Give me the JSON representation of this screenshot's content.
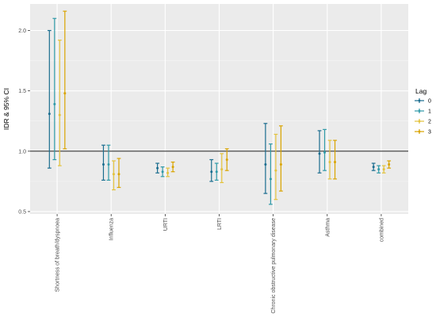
{
  "chart_data": {
    "type": "errorbar",
    "title": "",
    "ylabel": "IDR & 95% CI",
    "xlabel": "",
    "ylim": [
      0.48,
      2.22
    ],
    "yticks": [
      0.5,
      1.0,
      1.5,
      2.0
    ],
    "ytick_labels": [
      "0.5",
      "1.0",
      "1.5",
      "2.0"
    ],
    "reference_line": 1.0,
    "grid": true,
    "legend": {
      "title": "Lag",
      "position": "right"
    },
    "categories": [
      "Shortness of breath/dyspnoea",
      "Influenza",
      "URTI",
      "LRTI",
      "Chronic obstructive pulmonary disease",
      "Asthma",
      "combined"
    ],
    "series": [
      {
        "name": "0",
        "color": "#1b6d8f",
        "estimate": [
          1.31,
          0.89,
          0.86,
          0.83,
          0.89,
          0.98,
          0.87
        ],
        "lower": [
          0.86,
          0.76,
          0.82,
          0.75,
          0.65,
          0.82,
          0.84
        ],
        "upper": [
          2.0,
          1.05,
          0.9,
          0.93,
          1.23,
          1.17,
          0.9
        ]
      },
      {
        "name": "1",
        "color": "#2f9aa8",
        "estimate": [
          1.39,
          0.89,
          0.83,
          0.83,
          0.77,
          0.99,
          0.85
        ],
        "lower": [
          0.93,
          0.76,
          0.79,
          0.76,
          0.56,
          0.84,
          0.82
        ],
        "upper": [
          2.1,
          1.05,
          0.87,
          0.9,
          1.06,
          1.18,
          0.88
        ]
      },
      {
        "name": "2",
        "color": "#e3c23c",
        "estimate": [
          1.3,
          0.81,
          0.82,
          0.85,
          0.84,
          0.91,
          0.85
        ],
        "lower": [
          0.88,
          0.68,
          0.79,
          0.74,
          0.6,
          0.77,
          0.82
        ],
        "upper": [
          1.92,
          0.92,
          0.86,
          0.98,
          1.14,
          1.09,
          0.88
        ]
      },
      {
        "name": "3",
        "color": "#d9a400",
        "estimate": [
          1.48,
          0.81,
          0.87,
          0.93,
          0.89,
          0.91,
          0.89
        ],
        "lower": [
          1.02,
          0.7,
          0.83,
          0.84,
          0.67,
          0.77,
          0.86
        ],
        "upper": [
          2.16,
          0.94,
          0.91,
          1.02,
          1.21,
          1.09,
          0.92
        ]
      }
    ]
  }
}
